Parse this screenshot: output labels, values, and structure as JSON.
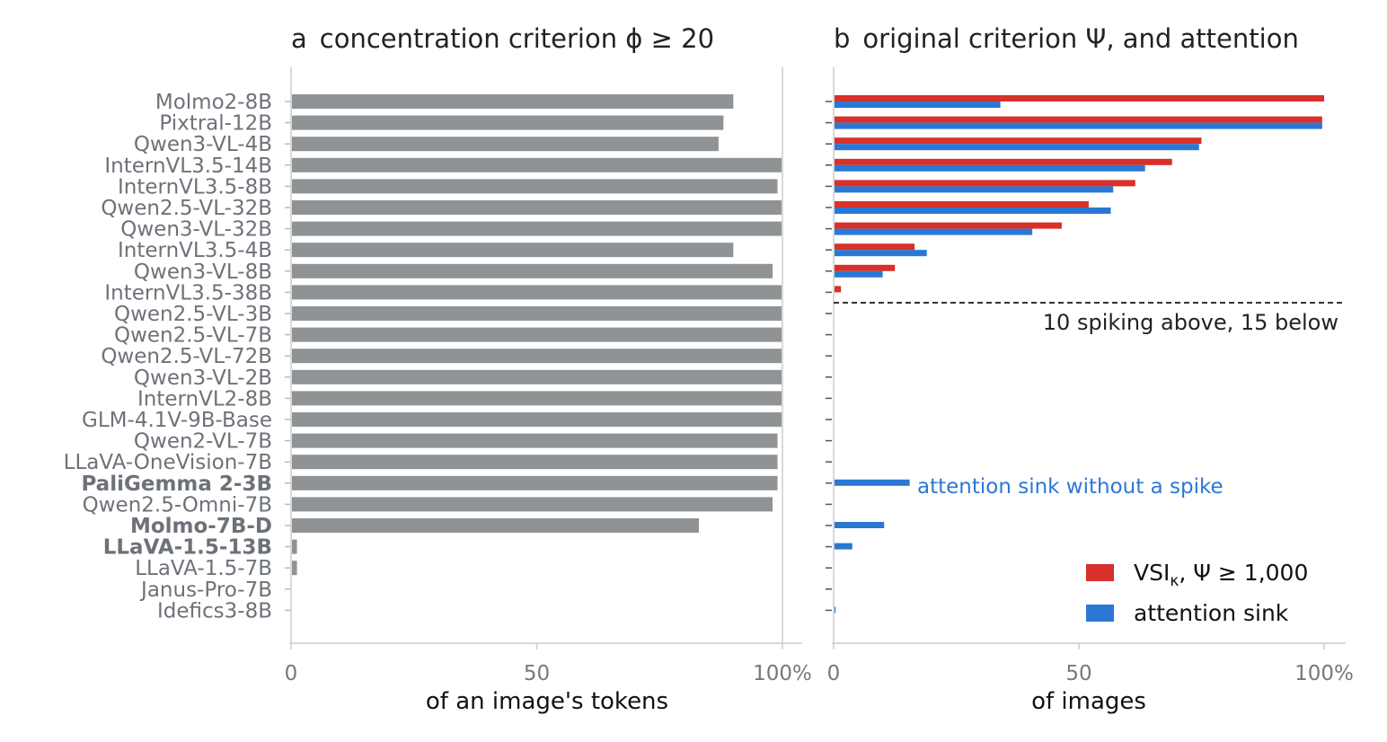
{
  "chart_data": [
    {
      "id": "a",
      "type": "bar",
      "orientation": "horizontal",
      "panel_letter": "a",
      "title": "concentration criterion ϕ ≥ 20",
      "xlabel": "of an image's tokens",
      "ylabel": "",
      "xlim": [
        0,
        100
      ],
      "xticks": [
        "0",
        "50",
        "100%"
      ],
      "color": "#8f9396",
      "categories": [
        "Molmo2-8B",
        "Pixtral-12B",
        "Qwen3-VL-4B",
        "InternVL3.5-14B",
        "InternVL3.5-8B",
        "Qwen2.5-VL-32B",
        "Qwen3-VL-32B",
        "InternVL3.5-4B",
        "Qwen3-VL-8B",
        "InternVL3.5-38B",
        "Qwen2.5-VL-3B",
        "Qwen2.5-VL-7B",
        "Qwen2.5-VL-72B",
        "Qwen3-VL-2B",
        "InternVL2-8B",
        "GLM-4.1V-9B-Base",
        "Qwen2-VL-7B",
        "LLaVA-OneVision-7B",
        "PaliGemma 2-3B",
        "Qwen2.5-Omni-7B",
        "Molmo-7B-D",
        "LLaVA-1.5-13B",
        "LLaVA-1.5-7B",
        "Janus-Pro-7B",
        "Idefics3-8B"
      ],
      "bold_categories": [
        "PaliGemma 2-3B",
        "Molmo-7B-D",
        "LLaVA-1.5-13B"
      ],
      "values": [
        90,
        88,
        87,
        100,
        99,
        100,
        100,
        90,
        98,
        100,
        100,
        100,
        100,
        100,
        100,
        100,
        99,
        99,
        99,
        98,
        83,
        1.2,
        1.2,
        0,
        0
      ]
    },
    {
      "id": "b",
      "type": "bar",
      "orientation": "horizontal",
      "panel_letter": "b",
      "title": "original criterion Ψ, and attention",
      "xlabel": "of images",
      "ylabel": "",
      "xlim": [
        0,
        100
      ],
      "xticks": [
        "0",
        "50",
        "100%"
      ],
      "series": [
        {
          "name": "VSIκ, Ψ ≥ 1,000",
          "color": "#d8302a",
          "values": [
            100,
            99.6,
            75,
            69,
            61.5,
            52,
            46.5,
            16.5,
            12.5,
            1.5,
            0,
            0,
            0,
            0,
            0,
            0,
            0,
            0,
            0,
            0,
            0,
            0,
            0,
            0,
            0
          ]
        },
        {
          "name": "attention sink",
          "color": "#2b78d4",
          "values": [
            34,
            99.6,
            74.5,
            63.5,
            57,
            56.5,
            40.5,
            19,
            10,
            0,
            0,
            0,
            0,
            0,
            0,
            0,
            0,
            0,
            15.5,
            0,
            10.3,
            3.8,
            0,
            0,
            0.4
          ]
        }
      ],
      "annotations": [
        {
          "text": "10 spiking above, 15 below",
          "after_row": 10
        },
        {
          "text": "attention sink without a spike",
          "row": 18,
          "color": "#2b78d4"
        }
      ],
      "legend": {
        "position": "bottom-right",
        "items": [
          {
            "label_main": "VSI",
            "label_sub": "κ",
            "label_rest": ", Ψ ≥ 1,000",
            "color": "#d8302a"
          },
          {
            "label_main": "attention sink",
            "label_sub": "",
            "label_rest": "",
            "color": "#2b78d4"
          }
        ]
      }
    }
  ]
}
